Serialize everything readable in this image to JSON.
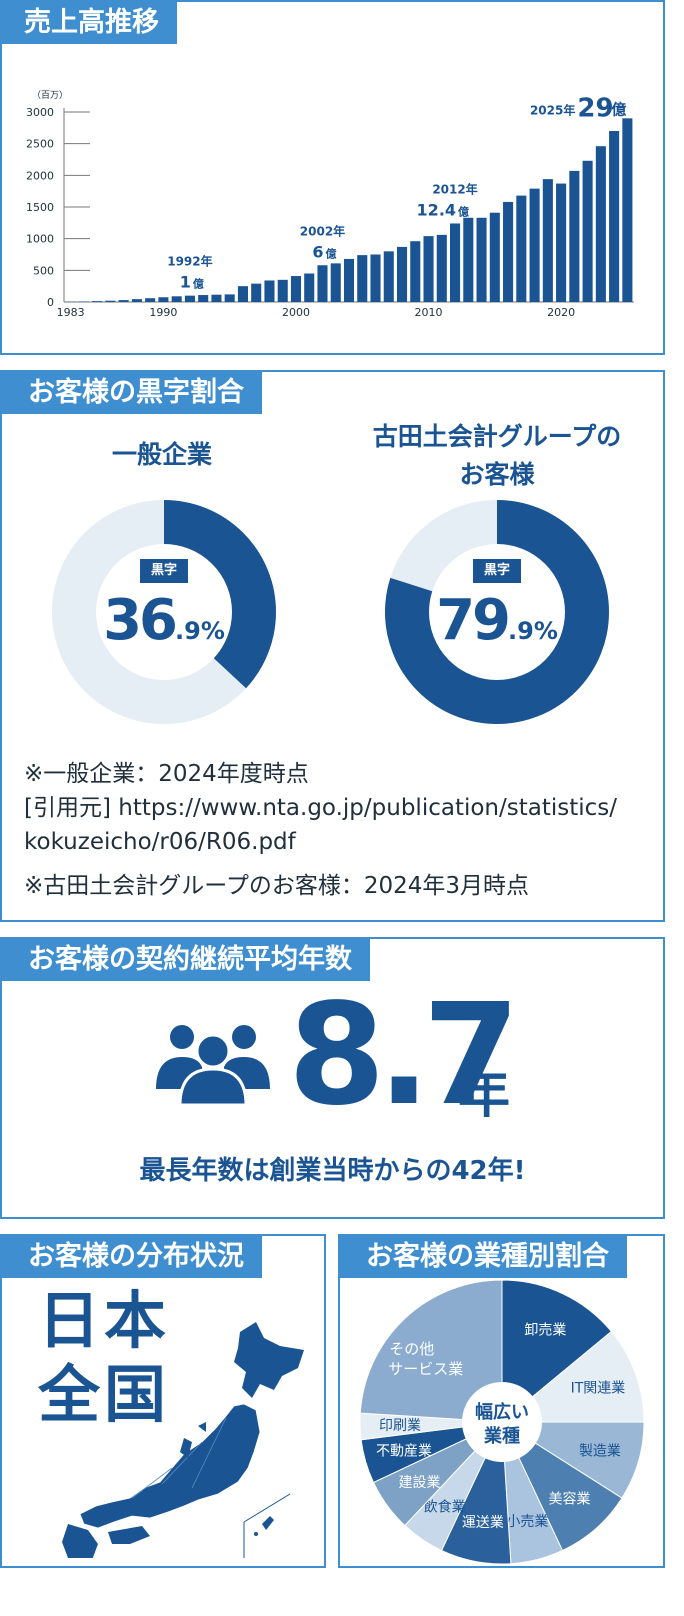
{
  "colors": {
    "dark": "#1a5493",
    "mid": "#3e8ed0",
    "light": "#e5edf5",
    "text": "#1f2f3c"
  },
  "sales": {
    "title": "売上高推移",
    "unit_label": "（百万）",
    "annotations": [
      {
        "year": "1992年",
        "value": "1",
        "unit": "億",
        "bar_year": 1992
      },
      {
        "year": "2002年",
        "value": "6",
        "unit": "億",
        "bar_year": 2002
      },
      {
        "year": "2012年",
        "value": "12.4",
        "unit": "億",
        "bar_year": 2012
      },
      {
        "year": "2025年",
        "value": "29",
        "unit": "億",
        "bar_year": 2025
      }
    ]
  },
  "chart_data": [
    {
      "type": "bar",
      "title": "売上高推移",
      "ylabel": "（百万）",
      "ylim": [
        0,
        3000
      ],
      "yticks": [
        0,
        500,
        1000,
        1500,
        2000,
        2500,
        3000
      ],
      "xticks": [
        1983,
        1990,
        2000,
        2010,
        2020
      ],
      "categories": [
        1983,
        1984,
        1985,
        1986,
        1987,
        1988,
        1989,
        1990,
        1991,
        1992,
        1993,
        1994,
        1995,
        1996,
        1997,
        1998,
        1999,
        2000,
        2001,
        2002,
        2003,
        2004,
        2005,
        2006,
        2007,
        2008,
        2009,
        2010,
        2011,
        2012,
        2013,
        2014,
        2015,
        2016,
        2017,
        2018,
        2019,
        2020,
        2021,
        2022,
        2023,
        2024,
        2025
      ],
      "values": [
        4,
        8,
        14,
        20,
        30,
        45,
        60,
        75,
        90,
        100,
        110,
        115,
        120,
        250,
        290,
        340,
        350,
        410,
        450,
        580,
        610,
        680,
        740,
        750,
        800,
        870,
        960,
        1040,
        1060,
        1240,
        1330,
        1330,
        1410,
        1580,
        1680,
        1790,
        1940,
        1870,
        2070,
        2230,
        2460,
        2700,
        2900
      ],
      "color": "#1a5493",
      "grid": false
    },
    {
      "type": "pie",
      "title": "一般企業",
      "categories": [
        "黒字",
        "その他"
      ],
      "values": [
        36.9,
        63.1
      ]
    },
    {
      "type": "pie",
      "title": "古田土会計グループのお客様",
      "categories": [
        "黒字",
        "その他"
      ],
      "values": [
        79.9,
        20.1
      ]
    },
    {
      "type": "pie",
      "title": "お客様の業種別割合",
      "categories": [
        "卸売業",
        "IT関連業",
        "製造業",
        "美容業",
        "小売業",
        "運送業",
        "飲食業",
        "建設業",
        "不動産業",
        "印刷業",
        "その他サービス業"
      ],
      "values": [
        14,
        11,
        9,
        9,
        6,
        8,
        5,
        6,
        5,
        3,
        24
      ]
    }
  ],
  "profit": {
    "title": "お客様の黒字割合",
    "left": {
      "label": "一般企業",
      "tag": "黒字",
      "int": "36",
      "dec": ".9%",
      "value": 36.9
    },
    "right": {
      "label1": "古田土会計グループの",
      "label2": "お客様",
      "tag": "黒字",
      "int": "79",
      "dec": ".9%",
      "value": 79.9
    },
    "notes": {
      "n1": "※一般企業：2024年度時点",
      "n2": "[引用元] https://www.nta.go.jp/publication/statistics/",
      "n3": "kokuzeicho/r06/R06.pdf",
      "n4": "※古田土会計グループのお客様：2024年3月時点"
    }
  },
  "contract": {
    "title": "お客様の契約継続平均年数",
    "big": "8.7",
    "unit": "年",
    "sub": "最長年数は創業当時からの42年!"
  },
  "distribution": {
    "title": "お客様の分布状況",
    "line1": "日本",
    "line2": "全国"
  },
  "industry": {
    "title": "お客様の業種別割合",
    "center1": "幅広い",
    "center2": "業種",
    "slices": [
      {
        "label": "卸売業",
        "color": "#1a5493",
        "text": "#ffffff"
      },
      {
        "label": "IT関連業",
        "color": "#e5edf5",
        "text": "#1a5493"
      },
      {
        "label": "製造業",
        "color": "#9ab8d6",
        "text": "#1a5493"
      },
      {
        "label": "美容業",
        "color": "#4d7fb1",
        "text": "#ffffff"
      },
      {
        "label": "小売業",
        "color": "#aac4df",
        "text": "#1a5493"
      },
      {
        "label": "運送業",
        "color": "#2a609c",
        "text": "#ffffff"
      },
      {
        "label": "飲食業",
        "color": "#c7d8ea",
        "text": "#1a5493"
      },
      {
        "label": "建設業",
        "color": "#7ea1c6",
        "text": "#ffffff"
      },
      {
        "label": "不動産業",
        "color": "#1a5493",
        "text": "#ffffff"
      },
      {
        "label": "印刷業",
        "color": "#e5edf5",
        "text": "#1a5493"
      },
      {
        "label": "その他",
        "label2": "サービス業",
        "color": "#8caccf",
        "text": "#ffffff"
      }
    ]
  }
}
